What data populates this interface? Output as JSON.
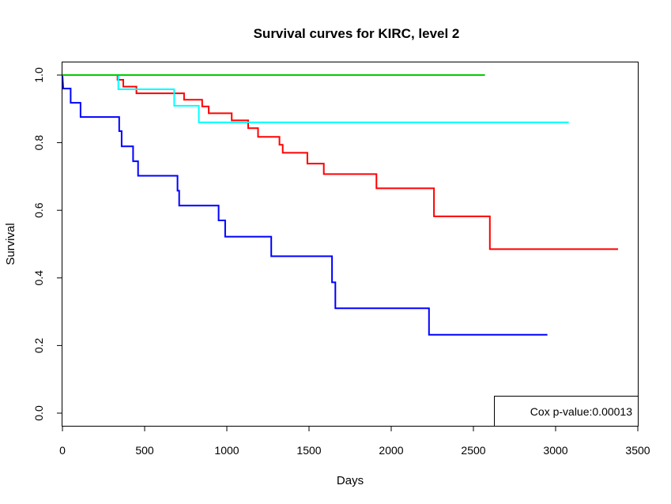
{
  "chart_data": {
    "type": "line",
    "step": true,
    "title": "Survival curves for KIRC, level 2",
    "xlabel": "Days",
    "ylabel": "Survival",
    "xlim": [
      0,
      3500
    ],
    "ylim": [
      0,
      1
    ],
    "xticks": [
      0,
      500,
      1000,
      1500,
      2000,
      2500,
      3000,
      3500
    ],
    "yticks": [
      0.0,
      0.2,
      0.4,
      0.6,
      0.8,
      1.0
    ],
    "ytick_labels": [
      "0.0",
      "0.2",
      "0.4",
      "0.6",
      "0.8",
      "1.0"
    ],
    "grid": false,
    "annotation": "Cox p-value:0.00013",
    "series": [
      {
        "color": "#0000ff",
        "points": [
          [
            0,
            1.0
          ],
          [
            5,
            0.96
          ],
          [
            50,
            0.96
          ],
          [
            50,
            0.918
          ],
          [
            110,
            0.918
          ],
          [
            110,
            0.876
          ],
          [
            345,
            0.876
          ],
          [
            345,
            0.834
          ],
          [
            360,
            0.834
          ],
          [
            360,
            0.789
          ],
          [
            430,
            0.789
          ],
          [
            430,
            0.745
          ],
          [
            460,
            0.745
          ],
          [
            460,
            0.702
          ],
          [
            700,
            0.702
          ],
          [
            700,
            0.658
          ],
          [
            710,
            0.658
          ],
          [
            710,
            0.614
          ],
          [
            950,
            0.614
          ],
          [
            950,
            0.57
          ],
          [
            990,
            0.57
          ],
          [
            990,
            0.522
          ],
          [
            1270,
            0.522
          ],
          [
            1270,
            0.464
          ],
          [
            1640,
            0.464
          ],
          [
            1640,
            0.387
          ],
          [
            1660,
            0.387
          ],
          [
            1660,
            0.31
          ],
          [
            2230,
            0.31
          ],
          [
            2230,
            0.232
          ],
          [
            2950,
            0.232
          ]
        ]
      },
      {
        "color": "#ff0000",
        "points": [
          [
            0,
            1.0
          ],
          [
            335,
            1.0
          ],
          [
            335,
            0.986
          ],
          [
            370,
            0.986
          ],
          [
            370,
            0.966
          ],
          [
            450,
            0.966
          ],
          [
            450,
            0.946
          ],
          [
            740,
            0.946
          ],
          [
            740,
            0.927
          ],
          [
            850,
            0.927
          ],
          [
            850,
            0.907
          ],
          [
            890,
            0.907
          ],
          [
            890,
            0.887
          ],
          [
            1030,
            0.887
          ],
          [
            1030,
            0.866
          ],
          [
            1130,
            0.866
          ],
          [
            1130,
            0.843
          ],
          [
            1190,
            0.843
          ],
          [
            1190,
            0.817
          ],
          [
            1320,
            0.817
          ],
          [
            1320,
            0.794
          ],
          [
            1340,
            0.794
          ],
          [
            1340,
            0.77
          ],
          [
            1490,
            0.77
          ],
          [
            1490,
            0.738
          ],
          [
            1590,
            0.738
          ],
          [
            1590,
            0.707
          ],
          [
            1910,
            0.707
          ],
          [
            1910,
            0.665
          ],
          [
            2260,
            0.665
          ],
          [
            2260,
            0.582
          ],
          [
            2600,
            0.582
          ],
          [
            2600,
            0.485
          ],
          [
            3380,
            0.485
          ]
        ]
      },
      {
        "color": "#00ffff",
        "points": [
          [
            0,
            1.0
          ],
          [
            340,
            1.0
          ],
          [
            340,
            0.958
          ],
          [
            680,
            0.958
          ],
          [
            680,
            0.909
          ],
          [
            830,
            0.909
          ],
          [
            830,
            0.86
          ],
          [
            3080,
            0.86
          ]
        ]
      },
      {
        "color": "#00cd00",
        "points": [
          [
            0,
            1.0
          ],
          [
            2570,
            1.0
          ]
        ]
      }
    ]
  }
}
